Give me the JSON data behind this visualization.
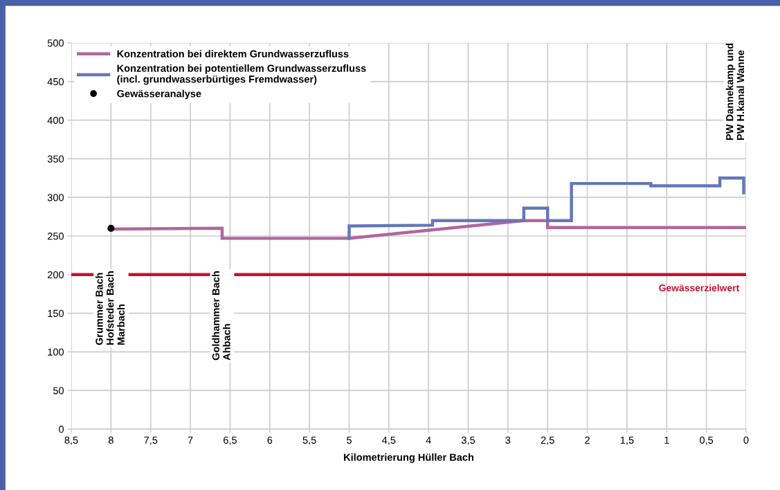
{
  "chart_data": {
    "type": "line",
    "xlabel": "Kilometrierung Hüller Bach",
    "xlim": [
      8.5,
      0
    ],
    "ylim": [
      0,
      500
    ],
    "xticks": [
      {
        "value": 8.5,
        "label": "8,5"
      },
      8,
      {
        "value": 7.5,
        "label": "7,5"
      },
      7,
      {
        "value": 6.5,
        "label": "6,5"
      },
      6,
      {
        "value": 5.5,
        "label": "5,5"
      },
      5,
      {
        "value": 4.5,
        "label": "4,5"
      },
      4,
      {
        "value": 3.5,
        "label": "3,5"
      },
      3,
      {
        "value": 2.5,
        "label": "2,5"
      },
      2,
      {
        "value": 1.5,
        "label": "1,5"
      },
      1,
      {
        "value": 0.5,
        "label": "0,5"
      },
      0
    ],
    "yticks": [
      0,
      50,
      100,
      150,
      200,
      250,
      300,
      350,
      400,
      450,
      500
    ],
    "grid": true,
    "legend": "top left",
    "series": [
      {
        "name": "Konzentration bei direktem Grundwasserzufluss",
        "color": "#b0669e",
        "x": [
          8,
          6.6,
          6.6,
          5,
          2.8,
          2.5,
          2.5,
          0
        ],
        "values": [
          259,
          260,
          247,
          247,
          270,
          270,
          261,
          261
        ]
      },
      {
        "name": "Konzentration bei potentiellem Grundwasserzufluss\n(incl. grundwasserbürtiges Fremdwasser)",
        "color": "#6377b8",
        "x": [
          5,
          5,
          3.95,
          3.95,
          2.8,
          2.8,
          2.5,
          2.5,
          2.2,
          2.2,
          1.2,
          1.2,
          0.33,
          0.33,
          0.03,
          0.03
        ],
        "values": [
          247,
          263,
          264,
          270,
          270,
          286,
          286,
          270,
          270,
          318,
          318,
          315,
          315,
          325,
          325,
          306
        ]
      },
      {
        "name": "Gewässeranalyse",
        "type": "scatter",
        "color": "#000000",
        "marker": "circle",
        "x": [
          8
        ],
        "values": [
          260
        ]
      }
    ],
    "ref_lines": [
      {
        "axis": "y",
        "value": 200,
        "label": "Gewässerzielwert",
        "color": "#c8102e"
      }
    ],
    "annotations": [
      {
        "text": "Grummer Bach\nHofsteder Bach\nMarbach",
        "x": 8,
        "y": 205
      },
      {
        "text": "Goldhammer Bach\nAhbach",
        "x": 6.6,
        "y": 205
      },
      "PW Dannekamp und\nPW H.kanal Wanne"
    ]
  }
}
